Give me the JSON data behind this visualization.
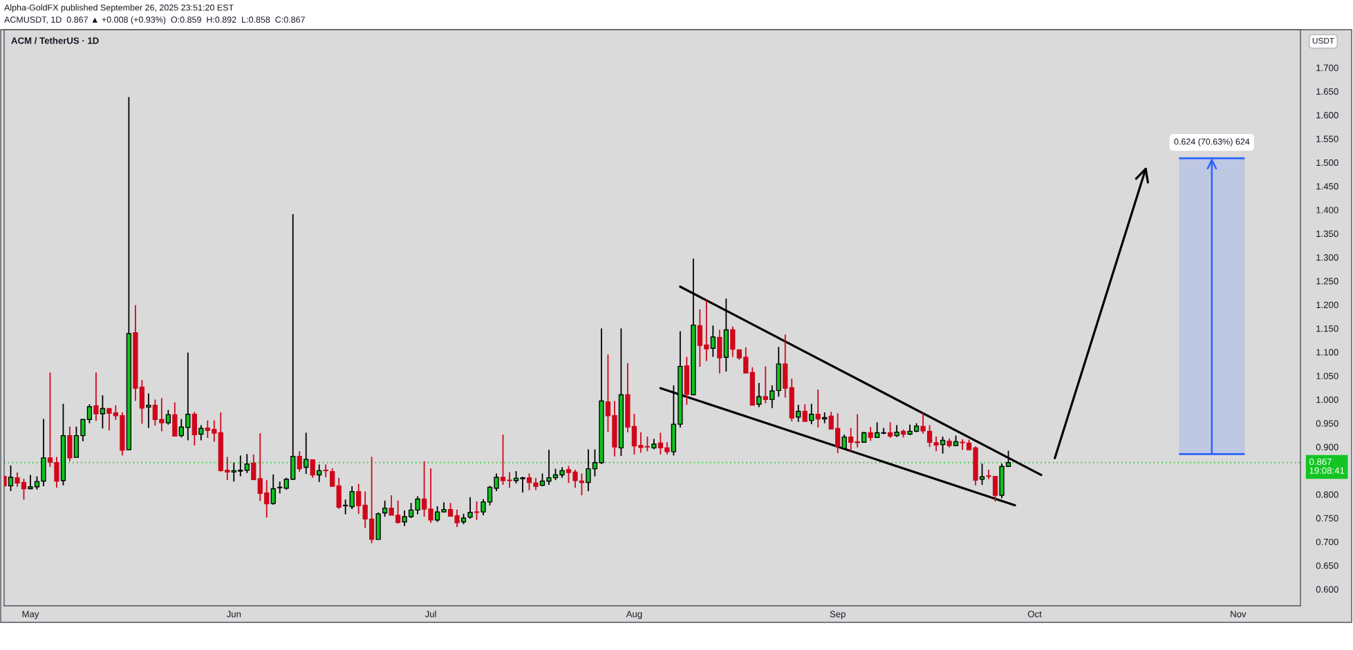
{
  "chart_data": {
    "type": "candlestick",
    "title": "ACM / TetherUS · 1D",
    "subtitle": "ACMUSDT, 1D  0.867 ▲ +0.008 (+0.93%)  O:0.859  H:0.892  L:0.858  C:0.867",
    "ylabel": "USDT",
    "annotations": [
      "Alpha-GoldFX published September 26, 2025 23:51:20 EST",
      {
        "text": "0.624 (70.63%) 624",
        "x": "2025-10-28",
        "y": 1.509
      }
    ],
    "x": [
      "2025-04-27",
      "2025-04-28",
      "2025-04-29",
      "2025-04-30",
      "2025-05-01",
      "2025-05-02",
      "2025-05-03",
      "2025-05-04",
      "2025-05-05",
      "2025-05-06",
      "2025-05-07",
      "2025-05-08",
      "2025-05-09",
      "2025-05-10",
      "2025-05-11",
      "2025-05-12",
      "2025-05-13",
      "2025-05-14",
      "2025-05-15",
      "2025-05-16",
      "2025-05-17",
      "2025-05-18",
      "2025-05-19",
      "2025-05-20",
      "2025-05-21",
      "2025-05-22",
      "2025-05-23",
      "2025-05-24",
      "2025-05-25",
      "2025-05-26",
      "2025-05-27",
      "2025-05-28",
      "2025-05-29",
      "2025-05-30",
      "2025-05-31",
      "2025-06-01",
      "2025-06-02",
      "2025-06-03",
      "2025-06-04",
      "2025-06-05",
      "2025-06-06",
      "2025-06-07",
      "2025-06-08",
      "2025-06-09",
      "2025-06-10",
      "2025-06-11",
      "2025-06-12",
      "2025-06-13",
      "2025-06-14",
      "2025-06-15",
      "2025-06-16",
      "2025-06-17",
      "2025-06-18",
      "2025-06-19",
      "2025-06-20",
      "2025-06-21",
      "2025-06-22",
      "2025-06-23",
      "2025-06-24",
      "2025-06-25",
      "2025-06-26",
      "2025-06-27",
      "2025-06-28",
      "2025-06-29",
      "2025-06-30",
      "2025-07-01",
      "2025-07-02",
      "2025-07-03",
      "2025-07-04",
      "2025-07-05",
      "2025-07-06",
      "2025-07-07",
      "2025-07-08",
      "2025-07-09",
      "2025-07-10",
      "2025-07-11",
      "2025-07-12",
      "2025-07-13",
      "2025-07-14",
      "2025-07-15",
      "2025-07-16",
      "2025-07-17",
      "2025-07-18",
      "2025-07-19",
      "2025-07-20",
      "2025-07-21",
      "2025-07-22",
      "2025-07-23",
      "2025-07-24",
      "2025-07-25",
      "2025-07-26",
      "2025-07-27",
      "2025-07-28",
      "2025-07-29",
      "2025-07-30",
      "2025-07-31",
      "2025-08-01",
      "2025-08-02",
      "2025-08-03",
      "2025-08-04",
      "2025-08-05",
      "2025-08-06",
      "2025-08-07",
      "2025-08-08",
      "2025-08-09",
      "2025-08-10",
      "2025-08-11",
      "2025-08-12",
      "2025-08-13",
      "2025-08-14",
      "2025-08-15",
      "2025-08-16",
      "2025-08-17",
      "2025-08-18",
      "2025-08-19",
      "2025-08-20",
      "2025-08-21",
      "2025-08-22",
      "2025-08-23",
      "2025-08-24",
      "2025-08-25",
      "2025-08-26",
      "2025-08-27",
      "2025-08-28",
      "2025-08-29",
      "2025-08-30",
      "2025-08-31",
      "2025-09-01",
      "2025-09-02",
      "2025-09-03",
      "2025-09-04",
      "2025-09-05",
      "2025-09-06",
      "2025-09-07",
      "2025-09-08",
      "2025-09-09",
      "2025-09-10",
      "2025-09-11",
      "2025-09-12",
      "2025-09-13",
      "2025-09-14",
      "2025-09-15",
      "2025-09-16",
      "2025-09-17",
      "2025-09-18",
      "2025-09-19",
      "2025-09-20",
      "2025-09-21",
      "2025-09-22",
      "2025-09-23",
      "2025-09-24",
      "2025-09-25",
      "2025-09-26",
      "2025-09-27"
    ],
    "ohlc": [
      [
        0.838,
        0.84,
        0.816,
        0.818
      ],
      [
        0.818,
        0.861,
        0.807,
        0.836
      ],
      [
        0.835,
        0.846,
        0.816,
        0.824
      ],
      [
        0.825,
        0.833,
        0.789,
        0.812
      ],
      [
        0.812,
        0.841,
        0.811,
        0.816
      ],
      [
        0.816,
        0.838,
        0.81,
        0.827
      ],
      [
        0.828,
        0.959,
        0.817,
        0.877
      ],
      [
        0.877,
        1.057,
        0.858,
        0.868
      ],
      [
        0.867,
        0.879,
        0.814,
        0.828
      ],
      [
        0.829,
        0.991,
        0.819,
        0.924
      ],
      [
        0.924,
        0.943,
        0.87,
        0.877
      ],
      [
        0.878,
        0.943,
        0.878,
        0.924
      ],
      [
        0.924,
        0.958,
        0.912,
        0.958
      ],
      [
        0.958,
        0.99,
        0.95,
        0.985
      ],
      [
        0.987,
        1.057,
        0.955,
        0.97
      ],
      [
        0.97,
        1.009,
        0.939,
        0.981
      ],
      [
        0.981,
        0.981,
        0.935,
        0.971
      ],
      [
        0.972,
        0.988,
        0.957,
        0.966
      ],
      [
        0.966,
        0.973,
        0.882,
        0.893
      ],
      [
        0.894,
        1.638,
        0.893,
        1.139
      ],
      [
        1.141,
        1.199,
        0.997,
        1.024
      ],
      [
        1.026,
        1.041,
        0.949,
        0.982
      ],
      [
        0.984,
        1.013,
        0.94,
        0.988
      ],
      [
        0.988,
        1.0,
        0.945,
        0.958
      ],
      [
        0.958,
        1.003,
        0.933,
        0.951
      ],
      [
        0.951,
        0.978,
        0.947,
        0.968
      ],
      [
        0.968,
        0.994,
        0.922,
        0.923
      ],
      [
        0.924,
        0.959,
        0.92,
        0.942
      ],
      [
        0.941,
        1.099,
        0.914,
        0.969
      ],
      [
        0.969,
        0.974,
        0.903,
        0.926
      ],
      [
        0.927,
        0.946,
        0.914,
        0.939
      ],
      [
        0.94,
        0.956,
        0.919,
        0.935
      ],
      [
        0.937,
        0.956,
        0.911,
        0.929
      ],
      [
        0.93,
        0.973,
        0.848,
        0.85
      ],
      [
        0.851,
        0.879,
        0.83,
        0.847
      ],
      [
        0.847,
        0.867,
        0.827,
        0.85
      ],
      [
        0.849,
        0.882,
        0.838,
        0.851
      ],
      [
        0.851,
        0.885,
        0.845,
        0.864
      ],
      [
        0.866,
        0.884,
        0.83,
        0.831
      ],
      [
        0.833,
        0.929,
        0.786,
        0.802
      ],
      [
        0.803,
        0.83,
        0.751,
        0.78
      ],
      [
        0.781,
        0.842,
        0.778,
        0.812
      ],
      [
        0.814,
        0.827,
        0.802,
        0.815
      ],
      [
        0.813,
        0.835,
        0.81,
        0.832
      ],
      [
        0.832,
        1.391,
        0.831,
        0.88
      ],
      [
        0.88,
        0.891,
        0.848,
        0.854
      ],
      [
        0.857,
        0.93,
        0.843,
        0.874
      ],
      [
        0.873,
        0.874,
        0.835,
        0.841
      ],
      [
        0.841,
        0.863,
        0.826,
        0.85
      ],
      [
        0.851,
        0.863,
        0.836,
        0.85
      ],
      [
        0.848,
        0.855,
        0.817,
        0.817
      ],
      [
        0.818,
        0.835,
        0.769,
        0.773
      ],
      [
        0.776,
        0.789,
        0.758,
        0.777
      ],
      [
        0.774,
        0.817,
        0.769,
        0.806
      ],
      [
        0.806,
        0.822,
        0.759,
        0.776
      ],
      [
        0.777,
        0.806,
        0.729,
        0.748
      ],
      [
        0.748,
        0.879,
        0.697,
        0.705
      ],
      [
        0.705,
        0.762,
        0.705,
        0.759
      ],
      [
        0.761,
        0.787,
        0.753,
        0.771
      ],
      [
        0.771,
        0.798,
        0.756,
        0.756
      ],
      [
        0.756,
        0.787,
        0.738,
        0.741
      ],
      [
        0.742,
        0.766,
        0.733,
        0.753
      ],
      [
        0.753,
        0.782,
        0.75,
        0.767
      ],
      [
        0.767,
        0.796,
        0.758,
        0.79
      ],
      [
        0.79,
        0.87,
        0.753,
        0.769
      ],
      [
        0.769,
        0.855,
        0.74,
        0.746
      ],
      [
        0.746,
        0.775,
        0.742,
        0.763
      ],
      [
        0.763,
        0.783,
        0.762,
        0.768
      ],
      [
        0.768,
        0.782,
        0.753,
        0.754
      ],
      [
        0.755,
        0.768,
        0.731,
        0.74
      ],
      [
        0.742,
        0.759,
        0.737,
        0.75
      ],
      [
        0.752,
        0.794,
        0.749,
        0.762
      ],
      [
        0.763,
        0.785,
        0.746,
        0.762
      ],
      [
        0.763,
        0.79,
        0.756,
        0.784
      ],
      [
        0.784,
        0.818,
        0.777,
        0.815
      ],
      [
        0.813,
        0.844,
        0.807,
        0.836
      ],
      [
        0.836,
        0.926,
        0.82,
        0.829
      ],
      [
        0.83,
        0.847,
        0.814,
        0.829
      ],
      [
        0.829,
        0.849,
        0.823,
        0.834
      ],
      [
        0.833,
        0.837,
        0.804,
        0.835
      ],
      [
        0.835,
        0.844,
        0.809,
        0.825
      ],
      [
        0.824,
        0.835,
        0.809,
        0.817
      ],
      [
        0.819,
        0.844,
        0.817,
        0.828
      ],
      [
        0.828,
        0.894,
        0.82,
        0.835
      ],
      [
        0.835,
        0.854,
        0.83,
        0.841
      ],
      [
        0.841,
        0.857,
        0.835,
        0.85
      ],
      [
        0.852,
        0.86,
        0.824,
        0.846
      ],
      [
        0.847,
        0.852,
        0.814,
        0.829
      ],
      [
        0.828,
        0.844,
        0.798,
        0.825
      ],
      [
        0.825,
        0.895,
        0.807,
        0.854
      ],
      [
        0.854,
        0.895,
        0.838,
        0.867
      ],
      [
        0.867,
        1.15,
        0.864,
        0.997
      ],
      [
        0.995,
        1.095,
        0.932,
        0.966
      ],
      [
        0.966,
        0.997,
        0.88,
        0.9
      ],
      [
        0.898,
        1.15,
        0.881,
        1.01
      ],
      [
        1.01,
        1.077,
        0.931,
        0.942
      ],
      [
        0.943,
        0.97,
        0.884,
        0.902
      ],
      [
        0.903,
        0.931,
        0.888,
        0.899
      ],
      [
        0.901,
        0.922,
        0.891,
        0.9
      ],
      [
        0.898,
        0.917,
        0.895,
        0.906
      ],
      [
        0.908,
        0.93,
        0.884,
        0.898
      ],
      [
        0.898,
        0.91,
        0.884,
        0.89
      ],
      [
        0.89,
        1.03,
        0.882,
        0.948
      ],
      [
        0.948,
        1.144,
        0.941,
        1.07
      ],
      [
        1.071,
        1.09,
        0.989,
        1.011
      ],
      [
        1.01,
        1.297,
        1.01,
        1.157
      ],
      [
        1.156,
        1.19,
        1.069,
        1.114
      ],
      [
        1.115,
        1.21,
        1.081,
        1.107
      ],
      [
        1.108,
        1.156,
        1.09,
        1.132
      ],
      [
        1.131,
        1.147,
        1.055,
        1.088
      ],
      [
        1.089,
        1.213,
        1.059,
        1.147
      ],
      [
        1.147,
        1.154,
        1.09,
        1.106
      ],
      [
        1.105,
        1.105,
        1.084,
        1.088
      ],
      [
        1.089,
        1.11,
        1.056,
        1.056
      ],
      [
        1.057,
        1.068,
        0.988,
        0.988
      ],
      [
        0.99,
        1.035,
        0.984,
        1.006
      ],
      [
        1.006,
        1.07,
        0.992,
        1.0
      ],
      [
        1.0,
        1.03,
        0.982,
        1.018
      ],
      [
        1.019,
        1.111,
        1.006,
        1.075
      ],
      [
        1.075,
        1.137,
        1.004,
        1.024
      ],
      [
        1.025,
        1.044,
        0.954,
        0.961
      ],
      [
        0.963,
        0.989,
        0.953,
        0.975
      ],
      [
        0.975,
        0.99,
        0.954,
        0.954
      ],
      [
        0.956,
        0.991,
        0.948,
        0.969
      ],
      [
        0.969,
        1.021,
        0.941,
        0.959
      ],
      [
        0.959,
        0.973,
        0.95,
        0.962
      ],
      [
        0.965,
        0.974,
        0.938,
        0.938
      ],
      [
        0.939,
        0.971,
        0.887,
        0.901
      ],
      [
        0.897,
        0.926,
        0.897,
        0.921
      ],
      [
        0.921,
        0.94,
        0.891,
        0.91
      ],
      [
        0.911,
        0.969,
        0.899,
        0.909
      ],
      [
        0.91,
        0.932,
        0.909,
        0.93
      ],
      [
        0.93,
        0.942,
        0.913,
        0.92
      ],
      [
        0.92,
        0.952,
        0.92,
        0.93
      ],
      [
        0.929,
        0.94,
        0.927,
        0.93
      ],
      [
        0.93,
        0.952,
        0.919,
        0.923
      ],
      [
        0.924,
        0.946,
        0.921,
        0.931
      ],
      [
        0.933,
        0.937,
        0.92,
        0.927
      ],
      [
        0.927,
        0.947,
        0.925,
        0.933
      ],
      [
        0.933,
        0.95,
        0.931,
        0.944
      ],
      [
        0.943,
        0.972,
        0.928,
        0.934
      ],
      [
        0.933,
        0.946,
        0.9,
        0.91
      ],
      [
        0.909,
        0.922,
        0.891,
        0.904
      ],
      [
        0.905,
        0.922,
        0.886,
        0.914
      ],
      [
        0.912,
        0.918,
        0.899,
        0.903
      ],
      [
        0.903,
        0.924,
        0.903,
        0.911
      ],
      [
        0.91,
        0.916,
        0.894,
        0.909
      ],
      [
        0.908,
        0.915,
        0.894,
        0.894
      ],
      [
        0.898,
        0.901,
        0.819,
        0.83
      ],
      [
        0.832,
        0.865,
        0.82,
        0.837
      ],
      [
        0.839,
        0.852,
        0.832,
        0.838
      ],
      [
        0.838,
        0.838,
        0.785,
        0.798
      ],
      [
        0.798,
        0.865,
        0.792,
        0.859
      ],
      [
        0.859,
        0.892,
        0.858,
        0.867
      ]
    ],
    "colors": [
      "#d0071b",
      "#0fc41f",
      "#d0071b",
      "#d0071b",
      "#0fc41f",
      "#0fc41f",
      "#0fc41f",
      "#d0071b",
      "#d0071b",
      "#0fc41f",
      "#d0071b",
      "#0fc41f",
      "#0fc41f",
      "#0fc41f",
      "#d0071b",
      "#0fc41f",
      "#d0071b",
      "#d0071b",
      "#d0071b",
      "#0fc41f",
      "#d0071b",
      "#d0071b",
      "#0fc41f",
      "#d0071b",
      "#d0071b",
      "#0fc41f",
      "#d0071b",
      "#0fc41f",
      "#0fc41f",
      "#d0071b",
      "#0fc41f",
      "#d0071b",
      "#d0071b",
      "#d0071b",
      "#d0071b",
      "#0fc41f",
      "#0fc41f",
      "#0fc41f",
      "#d0071b",
      "#d0071b",
      "#d0071b",
      "#0fc41f",
      "#0fc41f",
      "#0fc41f",
      "#0fc41f",
      "#d0071b",
      "#0fc41f",
      "#d0071b",
      "#0fc41f",
      "#d0071b",
      "#d0071b",
      "#d0071b",
      "#0fc41f",
      "#0fc41f",
      "#d0071b",
      "#d0071b",
      "#d0071b",
      "#0fc41f",
      "#0fc41f",
      "#d0071b",
      "#d0071b",
      "#0fc41f",
      "#0fc41f",
      "#0fc41f",
      "#d0071b",
      "#d0071b",
      "#0fc41f",
      "#0fc41f",
      "#d0071b",
      "#d0071b",
      "#0fc41f",
      "#0fc41f",
      "#d0071b",
      "#0fc41f",
      "#0fc41f",
      "#0fc41f",
      "#d0071b",
      "#d0071b",
      "#0fc41f",
      "#0fc41f",
      "#d0071b",
      "#d0071b",
      "#0fc41f",
      "#0fc41f",
      "#0fc41f",
      "#0fc41f",
      "#d0071b",
      "#d0071b",
      "#d0071b",
      "#0fc41f",
      "#0fc41f",
      "#0fc41f",
      "#d0071b",
      "#d0071b",
      "#0fc41f",
      "#d0071b",
      "#d0071b",
      "#d0071b",
      "#d0071b",
      "#0fc41f",
      "#d0071b",
      "#d0071b",
      "#0fc41f",
      "#0fc41f",
      "#d0071b",
      "#0fc41f",
      "#d0071b",
      "#d0071b",
      "#0fc41f",
      "#d0071b",
      "#0fc41f",
      "#d0071b",
      "#d0071b",
      "#d0071b",
      "#d0071b",
      "#0fc41f",
      "#d0071b",
      "#0fc41f",
      "#0fc41f",
      "#d0071b",
      "#d0071b",
      "#0fc41f",
      "#d0071b",
      "#0fc41f",
      "#d0071b",
      "#0fc41f",
      "#d0071b",
      "#d0071b",
      "#0fc41f",
      "#d0071b",
      "#d0071b",
      "#0fc41f",
      "#d0071b",
      "#0fc41f",
      "#0fc41f",
      "#d0071b",
      "#0fc41f",
      "#d0071b",
      "#0fc41f",
      "#0fc41f",
      "#d0071b",
      "#d0071b",
      "#d0071b",
      "#0fc41f",
      "#d0071b",
      "#0fc41f",
      "#d0071b",
      "#d0071b",
      "#d0071b",
      "#0fc41f",
      "#d0071b",
      "#d0071b",
      "#0fc41f",
      "#0fc41f"
    ],
    "series": [
      {
        "type": "line",
        "x": [
          "2025-08-08",
          "2025-10-02"
        ],
        "values": [
          1.238,
          0.841
        ],
        "color": "#000000"
      },
      {
        "type": "line",
        "x": [
          "2025-08-05",
          "2025-09-28"
        ],
        "values": [
          1.024,
          0.777
        ],
        "color": "#000000"
      },
      {
        "type": "bar",
        "x": [
          "2025-10-28"
        ],
        "values": [
          0.624
        ],
        "base": [
          0.885
        ],
        "color": "#bec8e3"
      }
    ],
    "ref_lines": [
      {
        "axis": "y",
        "value": 0.867,
        "label": "0.867\n19:08:41",
        "color": "#13c423",
        "line_style": "dotted"
      }
    ],
    "xlim": [
      "2025-04-27",
      "2025-11-10T12:00"
    ],
    "xticks": [
      {
        "value": "2025-05-01",
        "label": "May"
      },
      {
        "value": "2025-06-01",
        "label": "Jun"
      },
      {
        "value": "2025-07-01",
        "label": "Jul"
      },
      {
        "value": "2025-08-01",
        "label": "Aug"
      },
      {
        "value": "2025-09-01",
        "label": "Sep"
      },
      {
        "value": "2025-10-01",
        "label": "Oct"
      },
      {
        "value": "2025-11-01",
        "label": "Nov"
      }
    ],
    "ylim": [
      0.565,
      1.78
    ],
    "yticks": [
      {
        "value": 0.6,
        "label": "0.600"
      },
      {
        "value": 0.65,
        "label": "0.650"
      },
      {
        "value": 0.7,
        "label": "0.700"
      },
      {
        "value": 0.75,
        "label": "0.750"
      },
      {
        "value": 0.8,
        "label": "0.800"
      },
      {
        "value": 0.9,
        "label": "0.900"
      },
      {
        "value": 0.95,
        "label": "0.950"
      },
      {
        "value": 1.0,
        "label": "1.000"
      },
      {
        "value": 1.05,
        "label": "1.050"
      },
      {
        "value": 1.1,
        "label": "1.100"
      },
      {
        "value": 1.15,
        "label": "1.150"
      },
      {
        "value": 1.2,
        "label": "1.200"
      },
      {
        "value": 1.25,
        "label": "1.250"
      },
      {
        "value": 1.3,
        "label": "1.300"
      },
      {
        "value": 1.35,
        "label": "1.350"
      },
      {
        "value": 1.4,
        "label": "1.400"
      },
      {
        "value": 1.45,
        "label": "1.450"
      },
      {
        "value": 1.5,
        "label": "1.500"
      },
      {
        "value": 1.55,
        "label": "1.550"
      },
      {
        "value": 1.6,
        "label": "1.600"
      },
      {
        "value": 1.65,
        "label": "1.650"
      },
      {
        "value": 1.7,
        "label": "1.700"
      }
    ]
  }
}
